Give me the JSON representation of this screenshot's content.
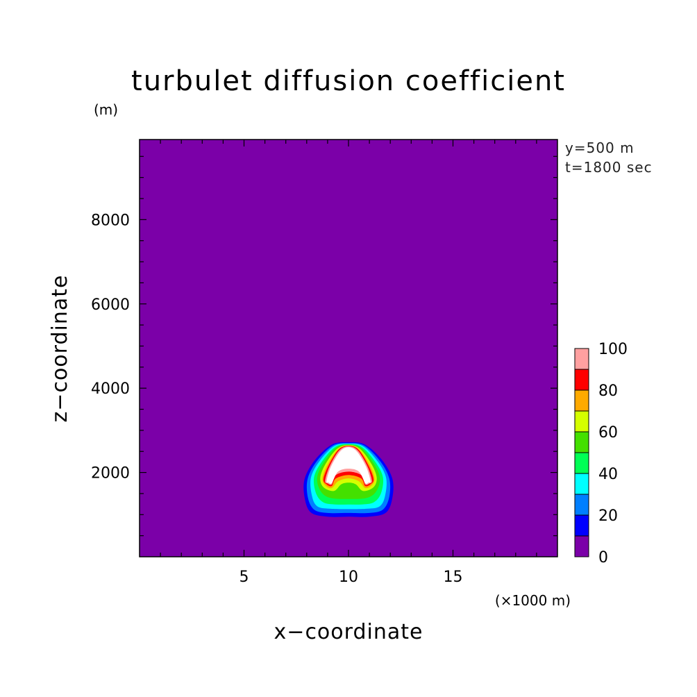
{
  "chart_data": {
    "type": "heatmap",
    "title": "turbulet diffusion coefficient",
    "yunit": "(m)",
    "xunit": "(×1000 m)",
    "xlabel": "x−coordinate",
    "ylabel": "z−coordinate",
    "annotations": [
      "y=500 m",
      "t=1800 sec"
    ],
    "xlim": [
      0,
      20
    ],
    "ylim": [
      0,
      9900
    ],
    "xticks": [
      {
        "value": 5,
        "label": "5"
      },
      {
        "value": 10,
        "label": "10"
      },
      {
        "value": 15,
        "label": "15"
      }
    ],
    "yticks": [
      {
        "value": 2000,
        "label": "2000"
      },
      {
        "value": 4000,
        "label": "4000"
      },
      {
        "value": 6000,
        "label": "6000"
      },
      {
        "value": 8000,
        "label": "8000"
      }
    ],
    "background_level": "0-10",
    "contours": [
      {
        "level": 10,
        "color": "#0000ff",
        "points": [
          [
            10,
            2720
          ],
          [
            10.8,
            2660
          ],
          [
            11.6,
            2300
          ],
          [
            12.1,
            1850
          ],
          [
            12.1,
            1400
          ],
          [
            11.8,
            1050
          ],
          [
            11,
            950
          ],
          [
            10,
            950
          ],
          [
            9,
            950
          ],
          [
            8.2,
            1050
          ],
          [
            7.9,
            1400
          ],
          [
            7.9,
            1850
          ],
          [
            8.4,
            2300
          ],
          [
            9.2,
            2660
          ]
        ]
      },
      {
        "level": 20,
        "color": "#007fff",
        "points": [
          [
            10,
            2700
          ],
          [
            10.75,
            2640
          ],
          [
            11.5,
            2280
          ],
          [
            11.95,
            1860
          ],
          [
            11.95,
            1420
          ],
          [
            11.65,
            1120
          ],
          [
            11,
            1040
          ],
          [
            10,
            1040
          ],
          [
            9,
            1040
          ],
          [
            8.35,
            1120
          ],
          [
            8.05,
            1420
          ],
          [
            8.05,
            1860
          ],
          [
            8.5,
            2280
          ],
          [
            9.25,
            2640
          ]
        ]
      },
      {
        "level": 30,
        "color": "#00ffff",
        "points": [
          [
            10,
            2680
          ],
          [
            10.7,
            2620
          ],
          [
            11.4,
            2260
          ],
          [
            11.8,
            1870
          ],
          [
            11.75,
            1450
          ],
          [
            11.5,
            1200
          ],
          [
            10.9,
            1140
          ],
          [
            10,
            1130
          ],
          [
            9.1,
            1140
          ],
          [
            8.5,
            1200
          ],
          [
            8.25,
            1450
          ],
          [
            8.2,
            1870
          ],
          [
            8.6,
            2260
          ],
          [
            9.3,
            2620
          ]
        ]
      },
      {
        "level": 40,
        "color": "#00ff55",
        "points": [
          [
            10,
            2670
          ],
          [
            10.65,
            2600
          ],
          [
            11.3,
            2240
          ],
          [
            11.65,
            1880
          ],
          [
            11.55,
            1500
          ],
          [
            11.2,
            1290
          ],
          [
            10.6,
            1240
          ],
          [
            10,
            1240
          ],
          [
            9.4,
            1240
          ],
          [
            8.8,
            1290
          ],
          [
            8.45,
            1500
          ],
          [
            8.35,
            1880
          ],
          [
            8.7,
            2240
          ],
          [
            9.35,
            2600
          ]
        ]
      },
      {
        "level": 50,
        "color": "#44e000",
        "points": [
          [
            10,
            2660
          ],
          [
            10.6,
            2580
          ],
          [
            11.2,
            2220
          ],
          [
            11.5,
            1880
          ],
          [
            11.35,
            1570
          ],
          [
            10.9,
            1400
          ],
          [
            10,
            1370
          ],
          [
            9.1,
            1400
          ],
          [
            8.65,
            1570
          ],
          [
            8.5,
            1880
          ],
          [
            8.8,
            2220
          ],
          [
            9.4,
            2580
          ]
        ]
      },
      {
        "level": 60,
        "color": "#d5ff00",
        "points": [
          [
            10,
            2650
          ],
          [
            10.55,
            2560
          ],
          [
            11.1,
            2200
          ],
          [
            11.35,
            1880
          ],
          [
            11.2,
            1650
          ],
          [
            10.7,
            1560
          ],
          [
            10.35,
            1720
          ],
          [
            10,
            1760
          ],
          [
            9.65,
            1720
          ],
          [
            9.3,
            1560
          ],
          [
            8.8,
            1650
          ],
          [
            8.65,
            1880
          ],
          [
            8.9,
            2200
          ],
          [
            9.45,
            2560
          ]
        ]
      },
      {
        "level": 70,
        "color": "#ffaa00",
        "points": [
          [
            10,
            2640
          ],
          [
            10.5,
            2550
          ],
          [
            11,
            2190
          ],
          [
            11.25,
            1860
          ],
          [
            11.1,
            1690
          ],
          [
            10.8,
            1630
          ],
          [
            10.5,
            1790
          ],
          [
            10,
            1860
          ],
          [
            9.5,
            1790
          ],
          [
            9.2,
            1630
          ],
          [
            8.9,
            1690
          ],
          [
            8.75,
            1860
          ],
          [
            9,
            2190
          ],
          [
            9.5,
            2550
          ]
        ]
      },
      {
        "level": 80,
        "color": "#ff0000",
        "points": [
          [
            10,
            2630
          ],
          [
            10.48,
            2540
          ],
          [
            10.95,
            2170
          ],
          [
            11.2,
            1840
          ],
          [
            11.05,
            1720
          ],
          [
            10.8,
            1680
          ],
          [
            10.6,
            1860
          ],
          [
            10,
            1940
          ],
          [
            9.4,
            1860
          ],
          [
            9.2,
            1680
          ],
          [
            8.95,
            1720
          ],
          [
            8.8,
            1840
          ],
          [
            9.05,
            2170
          ],
          [
            9.52,
            2540
          ]
        ]
      },
      {
        "level": 90,
        "color": "#ffa0a0",
        "points": [
          [
            10,
            2620
          ],
          [
            10.45,
            2520
          ],
          [
            10.9,
            2150
          ],
          [
            11.12,
            1810
          ],
          [
            11,
            1740
          ],
          [
            10.8,
            1720
          ],
          [
            10.6,
            1940
          ],
          [
            10,
            2020
          ],
          [
            9.4,
            1940
          ],
          [
            9.2,
            1720
          ],
          [
            9,
            1740
          ],
          [
            8.88,
            1810
          ],
          [
            9.1,
            2150
          ],
          [
            9.55,
            2520
          ]
        ]
      },
      {
        "level": 100,
        "color": "#ffffff",
        "points": [
          [
            10,
            2600
          ],
          [
            10.4,
            2500
          ],
          [
            10.85,
            2130
          ],
          [
            11.05,
            1800
          ],
          [
            10.95,
            1760
          ],
          [
            10.8,
            1750
          ],
          [
            10.5,
            2020
          ],
          [
            10,
            2090
          ],
          [
            9.5,
            2020
          ],
          [
            9.2,
            1750
          ],
          [
            9.05,
            1760
          ],
          [
            8.95,
            1800
          ],
          [
            9.15,
            2130
          ],
          [
            9.6,
            2500
          ]
        ]
      }
    ],
    "colorbar": {
      "ticks": [
        "100",
        "80",
        "60",
        "40",
        "20",
        "0"
      ],
      "bands": [
        {
          "from": 0,
          "to": 10,
          "color": "#7b00a8"
        },
        {
          "from": 10,
          "to": 20,
          "color": "#0000ff"
        },
        {
          "from": 20,
          "to": 30,
          "color": "#007fff"
        },
        {
          "from": 30,
          "to": 40,
          "color": "#00ffff"
        },
        {
          "from": 40,
          "to": 50,
          "color": "#00ff55"
        },
        {
          "from": 50,
          "to": 60,
          "color": "#44e000"
        },
        {
          "from": 60,
          "to": 70,
          "color": "#d5ff00"
        },
        {
          "from": 70,
          "to": 80,
          "color": "#ffaa00"
        },
        {
          "from": 80,
          "to": 90,
          "color": "#ff0000"
        },
        {
          "from": 90,
          "to": 100,
          "color": "#ffa0a0"
        }
      ]
    }
  }
}
